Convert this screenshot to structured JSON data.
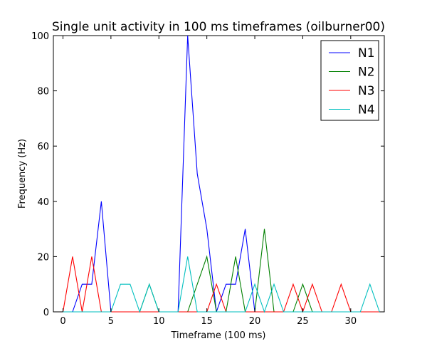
{
  "chart_data": {
    "type": "line",
    "title": "Single unit activity in 100 ms timeframes (oilburner00)",
    "xlabel": "Timeframe (100 ms)",
    "ylabel": "Frequency (Hz)",
    "xlim": [
      -1,
      33.5
    ],
    "ylim": [
      0,
      100
    ],
    "x_ticks": [
      0,
      5,
      10,
      15,
      20,
      25,
      30
    ],
    "y_ticks": [
      0,
      20,
      40,
      60,
      80,
      100
    ],
    "grid": false,
    "legend_position": "top-right",
    "x": [
      0,
      1,
      2,
      3,
      4,
      5,
      6,
      7,
      8,
      9,
      10,
      11,
      12,
      13,
      14,
      15,
      16,
      17,
      18,
      19,
      20,
      21,
      22,
      23,
      24,
      25,
      26,
      27,
      28,
      29,
      30,
      31,
      32,
      33
    ],
    "series": [
      {
        "name": "N1",
        "color": "#0000ff",
        "values": [
          0,
          0,
          10,
          10,
          40,
          0,
          0,
          0,
          0,
          0,
          0,
          0,
          0,
          100,
          50,
          30,
          0,
          10,
          10,
          30,
          0,
          0,
          0,
          0,
          0,
          0,
          0,
          0,
          0,
          0,
          0,
          0,
          0,
          0
        ]
      },
      {
        "name": "N2",
        "color": "#008000",
        "values": [
          0,
          0,
          0,
          0,
          0,
          0,
          0,
          0,
          0,
          10,
          0,
          0,
          0,
          0,
          10,
          20,
          0,
          0,
          20,
          0,
          0,
          30,
          0,
          0,
          0,
          10,
          0,
          0,
          0,
          0,
          0,
          0,
          0,
          0
        ]
      },
      {
        "name": "N3",
        "color": "#ff0000",
        "values": [
          0,
          20,
          0,
          20,
          0,
          0,
          0,
          0,
          0,
          0,
          0,
          0,
          0,
          0,
          0,
          0,
          10,
          0,
          0,
          0,
          0,
          0,
          0,
          0,
          10,
          0,
          10,
          0,
          0,
          10,
          0,
          0,
          0,
          0
        ]
      },
      {
        "name": "N4",
        "color": "#00bfbf",
        "values": [
          0,
          0,
          0,
          0,
          0,
          0,
          10,
          10,
          0,
          10,
          0,
          0,
          0,
          20,
          0,
          0,
          0,
          0,
          0,
          0,
          10,
          0,
          10,
          0,
          0,
          0,
          0,
          0,
          0,
          0,
          0,
          0,
          10,
          0
        ]
      }
    ]
  }
}
